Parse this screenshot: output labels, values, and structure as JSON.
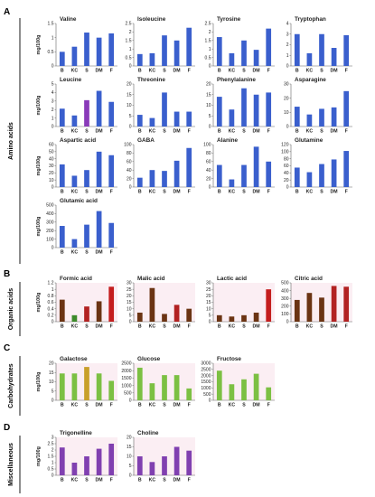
{
  "categories": [
    "B",
    "KC",
    "S",
    "DM",
    "F"
  ],
  "ylabel": "mg/100g",
  "sections": [
    {
      "letter": "A",
      "label": "Amino acids"
    },
    {
      "letter": "B",
      "label": "Organic acids"
    },
    {
      "letter": "C",
      "label": "Carbohydrates"
    },
    {
      "letter": "D",
      "label": "Miscellaneous"
    }
  ],
  "chart_data": [
    {
      "type": "bar",
      "title": "Valine",
      "categories": [
        "B",
        "KC",
        "S",
        "DM",
        "F"
      ],
      "values": [
        0.5,
        0.68,
        1.18,
        1.0,
        1.15
      ],
      "ylim": [
        0,
        1.5
      ],
      "yticks": [
        0,
        0.5,
        1,
        1.5
      ],
      "colors": [
        "#3a5fcd",
        "#3a5fcd",
        "#3a5fcd",
        "#3a5fcd",
        "#3a5fcd"
      ]
    },
    {
      "type": "bar",
      "title": "Isoleucine",
      "categories": [
        "B",
        "KC",
        "S",
        "DM",
        "F"
      ],
      "values": [
        0.7,
        0.75,
        1.8,
        1.5,
        2.25
      ],
      "ylim": [
        0,
        2.5
      ],
      "yticks": [
        0,
        0.5,
        1,
        1.5,
        2,
        2.5
      ],
      "colors": [
        "#3a5fcd",
        "#3a5fcd",
        "#3a5fcd",
        "#3a5fcd",
        "#3a5fcd"
      ]
    },
    {
      "type": "bar",
      "title": "Tyrosine",
      "categories": [
        "B",
        "KC",
        "S",
        "DM",
        "F"
      ],
      "values": [
        1.7,
        0.75,
        1.5,
        0.95,
        2.2
      ],
      "ylim": [
        0,
        2.5
      ],
      "yticks": [
        0,
        0.5,
        1,
        1.5,
        2,
        2.5
      ],
      "colors": [
        "#3a5fcd",
        "#3a5fcd",
        "#3a5fcd",
        "#3a5fcd",
        "#3a5fcd"
      ]
    },
    {
      "type": "bar",
      "title": "Tryptophan",
      "categories": [
        "B",
        "KC",
        "S",
        "DM",
        "F"
      ],
      "values": [
        3.0,
        1.2,
        3.0,
        1.7,
        2.9
      ],
      "ylim": [
        0,
        4
      ],
      "yticks": [
        0,
        1,
        2,
        3,
        4
      ],
      "colors": [
        "#3a5fcd",
        "#3a5fcd",
        "#3a5fcd",
        "#3a5fcd",
        "#3a5fcd"
      ]
    },
    {
      "type": "bar",
      "title": "Leucine",
      "categories": [
        "B",
        "KC",
        "S",
        "DM",
        "F"
      ],
      "values": [
        2.1,
        1.3,
        3.1,
        4.2,
        2.9
      ],
      "ylim": [
        0,
        5
      ],
      "yticks": [
        0,
        1,
        2,
        3,
        4,
        5
      ],
      "colors": [
        "#3a5fcd",
        "#3a5fcd",
        "#8a3ab9",
        "#3a5fcd",
        "#3a5fcd"
      ]
    },
    {
      "type": "bar",
      "title": "Threonine",
      "categories": [
        "B",
        "KC",
        "S",
        "DM",
        "F"
      ],
      "values": [
        5.5,
        4.0,
        16.0,
        7.0,
        7.0
      ],
      "ylim": [
        0,
        20
      ],
      "yticks": [
        0,
        5,
        10,
        15,
        20
      ],
      "colors": [
        "#3a5fcd",
        "#3a5fcd",
        "#3a5fcd",
        "#3a5fcd",
        "#3a5fcd"
      ]
    },
    {
      "type": "bar",
      "title": "Phenylalanine",
      "categories": [
        "B",
        "KC",
        "S",
        "DM",
        "F"
      ],
      "values": [
        14.0,
        8.0,
        18.0,
        15.0,
        16.0
      ],
      "ylim": [
        0,
        20
      ],
      "yticks": [
        0,
        5,
        10,
        15,
        20
      ],
      "colors": [
        "#3a5fcd",
        "#3a5fcd",
        "#3a5fcd",
        "#3a5fcd",
        "#3a5fcd"
      ]
    },
    {
      "type": "bar",
      "title": "Asparagine",
      "categories": [
        "B",
        "KC",
        "S",
        "DM",
        "F"
      ],
      "values": [
        14.0,
        8.5,
        12.5,
        13.5,
        25.0
      ],
      "ylim": [
        0,
        30
      ],
      "yticks": [
        0,
        10,
        20,
        30
      ],
      "colors": [
        "#3a5fcd",
        "#3a5fcd",
        "#3a5fcd",
        "#3a5fcd",
        "#3a5fcd"
      ]
    },
    {
      "type": "bar",
      "title": "Aspartic acid",
      "categories": [
        "B",
        "KC",
        "S",
        "DM",
        "F"
      ],
      "values": [
        32,
        16,
        24,
        50,
        45
      ],
      "ylim": [
        0,
        60
      ],
      "yticks": [
        0,
        10,
        20,
        30,
        40,
        50,
        60
      ],
      "colors": [
        "#3a5fcd",
        "#3a5fcd",
        "#3a5fcd",
        "#3a5fcd",
        "#3a5fcd"
      ]
    },
    {
      "type": "bar",
      "title": "GABA",
      "categories": [
        "B",
        "KC",
        "S",
        "DM",
        "F"
      ],
      "values": [
        22,
        40,
        38,
        62,
        92
      ],
      "ylim": [
        0,
        100
      ],
      "yticks": [
        0,
        20,
        40,
        60,
        80,
        100
      ],
      "colors": [
        "#3a5fcd",
        "#3a5fcd",
        "#3a5fcd",
        "#3a5fcd",
        "#3a5fcd"
      ]
    },
    {
      "type": "bar",
      "title": "Alanine",
      "categories": [
        "B",
        "KC",
        "S",
        "DM",
        "F"
      ],
      "values": [
        52,
        18,
        52,
        95,
        60
      ],
      "ylim": [
        0,
        100
      ],
      "yticks": [
        0,
        20,
        40,
        60,
        80,
        100
      ],
      "colors": [
        "#3a5fcd",
        "#3a5fcd",
        "#3a5fcd",
        "#3a5fcd",
        "#3a5fcd"
      ]
    },
    {
      "type": "bar",
      "title": "Glutamine",
      "categories": [
        "B",
        "KC",
        "S",
        "DM",
        "F"
      ],
      "values": [
        55,
        42,
        65,
        78,
        102
      ],
      "ylim": [
        0,
        120
      ],
      "yticks": [
        0,
        20,
        40,
        60,
        80,
        100,
        120
      ],
      "colors": [
        "#3a5fcd",
        "#3a5fcd",
        "#3a5fcd",
        "#3a5fcd",
        "#3a5fcd"
      ]
    },
    {
      "type": "bar",
      "title": "Glutamic acid",
      "categories": [
        "B",
        "KC",
        "S",
        "DM",
        "F"
      ],
      "values": [
        255,
        100,
        270,
        430,
        290
      ],
      "ylim": [
        0,
        500
      ],
      "yticks": [
        0,
        100,
        200,
        300,
        400,
        500
      ],
      "colors": [
        "#3a5fcd",
        "#3a5fcd",
        "#3a5fcd",
        "#3a5fcd",
        "#3a5fcd"
      ]
    },
    {
      "type": "bar",
      "title": "Formic acid",
      "categories": [
        "B",
        "KC",
        "S",
        "DM",
        "F"
      ],
      "values": [
        0.68,
        0.2,
        0.47,
        0.63,
        1.08
      ],
      "ylim": [
        0,
        1.2
      ],
      "yticks": [
        0,
        0.2,
        0.4,
        0.6,
        0.8,
        1,
        1.2
      ],
      "colors": [
        "#6b3413",
        "#3d8a2a",
        "#b22222",
        "#6b3413",
        "#c41e1e"
      ]
    },
    {
      "type": "bar",
      "title": "Malic acid",
      "categories": [
        "B",
        "KC",
        "S",
        "DM",
        "F"
      ],
      "values": [
        7,
        26,
        6,
        13,
        10
      ],
      "ylim": [
        0,
        30
      ],
      "yticks": [
        0,
        5,
        10,
        15,
        20,
        25,
        30
      ],
      "colors": [
        "#6b3413",
        "#6b3413",
        "#6b3413",
        "#b22222",
        "#6b3413"
      ]
    },
    {
      "type": "bar",
      "title": "Lactic acid",
      "categories": [
        "B",
        "KC",
        "S",
        "DM",
        "F"
      ],
      "values": [
        5,
        4,
        5,
        7,
        25
      ],
      "ylim": [
        0,
        30
      ],
      "yticks": [
        0,
        5,
        10,
        15,
        20,
        25,
        30
      ],
      "colors": [
        "#6b3413",
        "#6b3413",
        "#6b3413",
        "#6b3413",
        "#c41e1e"
      ]
    },
    {
      "type": "bar",
      "title": "Citric acid",
      "categories": [
        "B",
        "KC",
        "S",
        "DM",
        "F"
      ],
      "values": [
        280,
        370,
        310,
        460,
        450
      ],
      "ylim": [
        0,
        500
      ],
      "yticks": [
        0,
        100,
        200,
        300,
        400,
        500
      ],
      "colors": [
        "#6b3413",
        "#6b3413",
        "#6b3413",
        "#b22222",
        "#b22222"
      ]
    },
    {
      "type": "bar",
      "title": "Galactose",
      "categories": [
        "B",
        "KC",
        "S",
        "DM",
        "F"
      ],
      "values": [
        14.5,
        14.5,
        18.0,
        14.5,
        10.5
      ],
      "ylim": [
        0,
        20
      ],
      "yticks": [
        0,
        5,
        10,
        15,
        20
      ],
      "colors": [
        "#7cc043",
        "#7cc043",
        "#c8a02a",
        "#7cc043",
        "#7cc043"
      ]
    },
    {
      "type": "bar",
      "title": "Glucose",
      "categories": [
        "B",
        "KC",
        "S",
        "DM",
        "F"
      ],
      "values": [
        2200,
        1150,
        1700,
        1700,
        800
      ],
      "ylim": [
        0,
        2500
      ],
      "yticks": [
        0,
        500,
        1000,
        1500,
        2000,
        2500
      ],
      "colors": [
        "#7cc043",
        "#7cc043",
        "#7cc043",
        "#7cc043",
        "#7cc043"
      ]
    },
    {
      "type": "bar",
      "title": "Fructose",
      "categories": [
        "B",
        "KC",
        "S",
        "DM",
        "F"
      ],
      "values": [
        2400,
        1300,
        1700,
        2150,
        1050
      ],
      "ylim": [
        0,
        3000
      ],
      "yticks": [
        0,
        500,
        1000,
        1500,
        2000,
        2500,
        3000
      ],
      "colors": [
        "#7cc043",
        "#7cc043",
        "#7cc043",
        "#7cc043",
        "#7cc043"
      ]
    },
    {
      "type": "bar",
      "title": "Trigonelline",
      "categories": [
        "B",
        "KC",
        "S",
        "DM",
        "F"
      ],
      "values": [
        2.2,
        1.0,
        1.5,
        2.1,
        2.5
      ],
      "ylim": [
        0,
        3
      ],
      "yticks": [
        0,
        0.5,
        1,
        1.5,
        2,
        2.5,
        3
      ],
      "colors": [
        "#8040b0",
        "#8040b0",
        "#8040b0",
        "#8040b0",
        "#8040b0"
      ]
    },
    {
      "type": "bar",
      "title": "Choline",
      "categories": [
        "B",
        "KC",
        "S",
        "DM",
        "F"
      ],
      "values": [
        10,
        7,
        10,
        15,
        13
      ],
      "ylim": [
        0,
        20
      ],
      "yticks": [
        0,
        5,
        10,
        15,
        20
      ],
      "colors": [
        "#8040b0",
        "#8040b0",
        "#8040b0",
        "#8040b0",
        "#8040b0"
      ]
    }
  ]
}
